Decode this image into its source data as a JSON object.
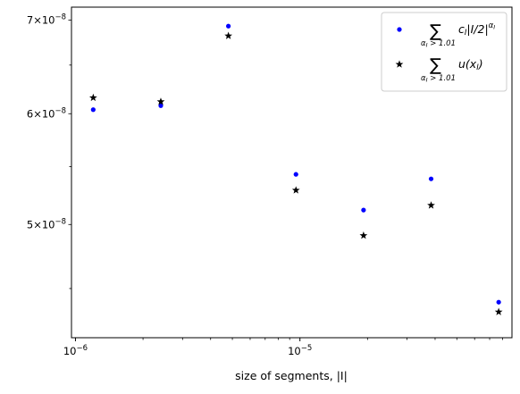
{
  "chart_data": {
    "type": "scatter",
    "xscale": "log",
    "yscale": "log",
    "xlabel": "size of segments, |I|",
    "ylabel": "",
    "xlim": [
      9.6e-07,
      8.8e-05
    ],
    "ylim": [
      4.15e-08,
      7.15e-08
    ],
    "grid": false,
    "legend_position": "top-right",
    "x_ticks": [
      {
        "value": 1e-06,
        "base": "10",
        "exp": "−6"
      },
      {
        "value": 1e-05,
        "base": "10",
        "exp": "−5"
      }
    ],
    "y_ticks": [
      {
        "value": 5e-08,
        "mant": "5",
        "exp": "−8"
      },
      {
        "value": 6e-08,
        "mant": "6",
        "exp": "−8"
      },
      {
        "value": 7e-08,
        "mant": "7",
        "exp": "−8"
      }
    ],
    "series": [
      {
        "marker": "circle",
        "color": "#0000ff",
        "x": [
          1.2e-06,
          2.4e-06,
          4.8e-06,
          9.6e-06,
          1.92e-05,
          3.84e-05,
          7.68e-05
        ],
        "y": [
          6.04e-08,
          6.08e-08,
          6.93e-08,
          5.43e-08,
          5.12e-08,
          5.39e-08,
          4.4e-08
        ]
      },
      {
        "marker": "star",
        "color": "#000000",
        "x": [
          1.2e-06,
          2.4e-06,
          4.8e-06,
          9.6e-06,
          1.92e-05,
          3.84e-05,
          7.68e-05
        ],
        "y": [
          6.16e-08,
          6.12e-08,
          6.82e-08,
          5.29e-08,
          4.91e-08,
          5.16e-08,
          4.33e-08
        ]
      }
    ],
    "legend": [
      {
        "sigma": "∑",
        "sub": "α",
        "sub2": "I",
        "sub3": " > 1.01",
        "term_a": "c",
        "term_a_sub": "I",
        "term_b": "|I/2|",
        "term_sup": "α",
        "term_sup_sub": "I"
      },
      {
        "sigma": "∑",
        "sub": "α",
        "sub2": "I",
        "sub3": " > 1.01",
        "term_a": "u(x",
        "term_a_sub": "I",
        "term_b": ")"
      }
    ]
  }
}
